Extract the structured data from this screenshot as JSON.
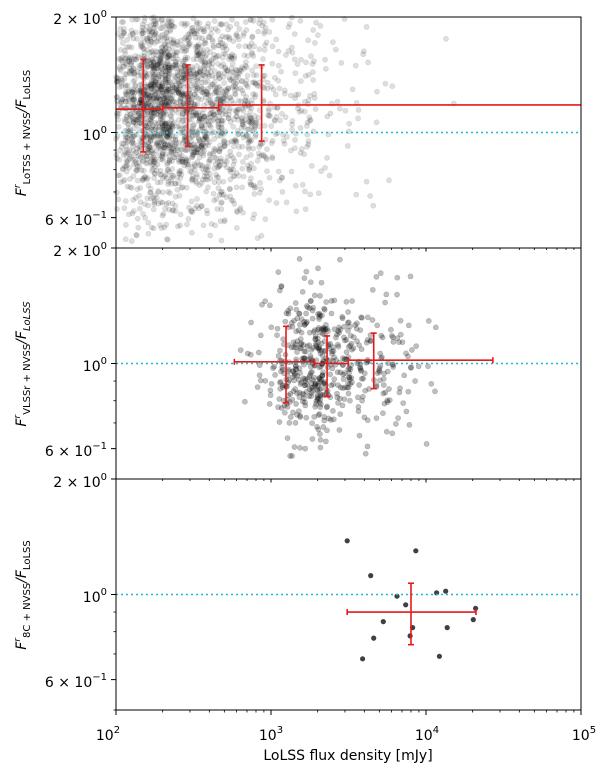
{
  "figure": {
    "xlabel": "LoLSS flux density [mJy]",
    "xtick_labels": [
      "10",
      "10",
      "10",
      "10"
    ],
    "xtick_exponents": [
      "2",
      "3",
      "4",
      "5"
    ],
    "ytick_labels": {
      "top": "2 × 10",
      "top_exp": "0",
      "mid": "10",
      "mid_exp": "0",
      "low": "6 × 10",
      "low_exp": "−1"
    }
  },
  "chart_data": [
    {
      "type": "scatter",
      "panel": "LoTSS",
      "ylabel_parts": {
        "F": "F",
        "sup": "r",
        "sub": "LoTSS + NVSS",
        "den": "/F",
        "den_sub": "LoLSS"
      },
      "x_scale": "log",
      "y_scale": "log",
      "xlim": [
        100,
        100000
      ],
      "ylim": [
        0.5,
        2.0
      ],
      "reference_line": 1.0,
      "scatter_color": "#000000",
      "scatter_alpha": 0.13,
      "scatter_n": 2600,
      "scatter_seed": 11,
      "scatter_distribution": {
        "x_log_mean": 2.35,
        "x_log_sd": 0.3,
        "x_min": 100,
        "x_max": 28000,
        "y_log_mean": 0.075,
        "y_log_sd": 0.14,
        "y_min": 0.5,
        "y_max": 2.0
      },
      "binned": [
        {
          "x": 150,
          "x_low": 100,
          "x_high": 200,
          "y": 1.15,
          "y_low": 0.89,
          "y_high": 1.55
        },
        {
          "x": 290,
          "x_low": 200,
          "x_high": 460,
          "y": 1.16,
          "y_low": 0.92,
          "y_high": 1.5
        },
        {
          "x": 870,
          "x_low": 460,
          "x_high": 100000,
          "y": 1.18,
          "y_low": 0.95,
          "y_high": 1.5
        }
      ],
      "errorbar_color": "#e41a1c",
      "reference_color": "#17becf"
    },
    {
      "type": "scatter",
      "panel": "VLSSr",
      "ylabel_parts": {
        "F": "F",
        "sup": "r",
        "sub": "VLSSr + NVSS",
        "den": "/F",
        "den_sub": "LoLSS"
      },
      "x_scale": "log",
      "y_scale": "log",
      "xlim": [
        100,
        100000
      ],
      "ylim": [
        0.5,
        2.0
      ],
      "reference_line": 1.0,
      "scatter_color": "#000000",
      "scatter_alpha": 0.25,
      "scatter_n": 560,
      "scatter_seed": 27,
      "scatter_distribution": {
        "x_log_mean": 3.33,
        "x_log_sd": 0.22,
        "x_min": 600,
        "x_max": 12000,
        "y_log_mean": 0.0,
        "y_log_sd": 0.1,
        "y_min": 0.55,
        "y_max": 1.95
      },
      "binned": [
        {
          "x": 1250,
          "x_low": 580,
          "x_high": 1900,
          "y": 1.01,
          "y_low": 0.79,
          "y_high": 1.25
        },
        {
          "x": 2300,
          "x_low": 1900,
          "x_high": 3150,
          "y": 1.0,
          "y_low": 0.82,
          "y_high": 1.18
        },
        {
          "x": 4600,
          "x_low": 3150,
          "x_high": 27000,
          "y": 1.02,
          "y_low": 0.86,
          "y_high": 1.2
        }
      ],
      "errorbar_color": "#e41a1c",
      "reference_color": "#17becf"
    },
    {
      "type": "scatter",
      "panel": "8C",
      "ylabel_parts": {
        "F": "F",
        "sup": "r",
        "sub": "8C + NVSS",
        "den": "/F",
        "den_sub": "LoLSS"
      },
      "x_scale": "log",
      "y_scale": "log",
      "xlim": [
        100,
        100000
      ],
      "ylim": [
        0.5,
        2.0
      ],
      "reference_line": 1.0,
      "scatter_color": "#000000",
      "scatter_alpha": 0.75,
      "points": [
        [
          3100,
          1.38
        ],
        [
          3900,
          0.68
        ],
        [
          4400,
          1.12
        ],
        [
          4600,
          0.77
        ],
        [
          5300,
          0.85
        ],
        [
          6500,
          0.99
        ],
        [
          7400,
          0.94
        ],
        [
          7900,
          0.78
        ],
        [
          8200,
          0.82
        ],
        [
          8600,
          1.3
        ],
        [
          11700,
          1.01
        ],
        [
          12200,
          0.69
        ],
        [
          13400,
          1.02
        ],
        [
          13700,
          0.82
        ],
        [
          20200,
          0.86
        ],
        [
          20900,
          0.92
        ]
      ],
      "binned": [
        {
          "x": 8000,
          "x_low": 3100,
          "x_high": 21000,
          "y": 0.9,
          "y_low": 0.74,
          "y_high": 1.07
        }
      ],
      "errorbar_color": "#e41a1c",
      "reference_color": "#17becf"
    }
  ]
}
